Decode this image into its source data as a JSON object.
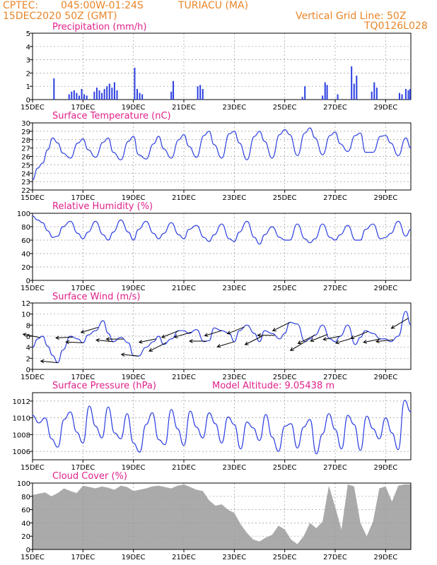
{
  "header": {
    "source": "CPTEC:",
    "location_coords": "045:00W-01:24S",
    "location_name": "TURIACU (MA)",
    "run_date": "15DEC2020 50Z (GMT)",
    "vertical_grid_line": "Vertical Grid Line: 50Z",
    "code": "TQ0126L028"
  },
  "colors": {
    "header": "#e8862a",
    "titles": "#e0208a",
    "series": "#2c3fe0",
    "wind_arrow": "#000000",
    "cloud": "#aaaaaa"
  },
  "x_labels": [
    "15DEC",
    "17DEC",
    "19DEC",
    "21DEC",
    "23DEC",
    "25DEC",
    "27DEC",
    "29DEC"
  ],
  "chart_data": [
    {
      "type": "bar",
      "title": "Precipitation (mm/h)",
      "ylim": [
        0,
        5
      ],
      "yticks": [
        0,
        1,
        2,
        3,
        4,
        5
      ],
      "grid": true,
      "events": [
        {
          "day": 0.85,
          "v": 1.6
        },
        {
          "day": 1.45,
          "v": 0.4
        },
        {
          "day": 1.55,
          "v": 0.6
        },
        {
          "day": 1.65,
          "v": 0.7
        },
        {
          "day": 1.75,
          "v": 0.5
        },
        {
          "day": 1.85,
          "v": 0.3
        },
        {
          "day": 1.95,
          "v": 0.8
        },
        {
          "day": 2.05,
          "v": 0.4
        },
        {
          "day": 2.15,
          "v": 0.3
        },
        {
          "day": 2.45,
          "v": 0.6
        },
        {
          "day": 2.55,
          "v": 0.9
        },
        {
          "day": 2.65,
          "v": 0.7
        },
        {
          "day": 2.75,
          "v": 0.5
        },
        {
          "day": 2.85,
          "v": 0.8
        },
        {
          "day": 2.95,
          "v": 1.0
        },
        {
          "day": 3.05,
          "v": 1.2
        },
        {
          "day": 3.15,
          "v": 0.9
        },
        {
          "day": 3.25,
          "v": 1.3
        },
        {
          "day": 3.35,
          "v": 0.7
        },
        {
          "day": 4.05,
          "v": 2.4
        },
        {
          "day": 4.15,
          "v": 0.8
        },
        {
          "day": 4.25,
          "v": 0.5
        },
        {
          "day": 4.35,
          "v": 0.4
        },
        {
          "day": 5.5,
          "v": 0.6
        },
        {
          "day": 5.58,
          "v": 1.4
        },
        {
          "day": 6.55,
          "v": 1.0
        },
        {
          "day": 6.65,
          "v": 1.1
        },
        {
          "day": 6.75,
          "v": 0.8
        },
        {
          "day": 10.7,
          "v": 0.2
        },
        {
          "day": 10.8,
          "v": 1.0
        },
        {
          "day": 11.5,
          "v": 0.3
        },
        {
          "day": 11.6,
          "v": 1.3
        },
        {
          "day": 11.68,
          "v": 1.1
        },
        {
          "day": 12.1,
          "v": 0.4
        },
        {
          "day": 12.65,
          "v": 2.5
        },
        {
          "day": 12.75,
          "v": 1.2
        },
        {
          "day": 12.85,
          "v": 1.8
        },
        {
          "day": 13.45,
          "v": 0.6
        },
        {
          "day": 13.55,
          "v": 1.3
        },
        {
          "day": 13.65,
          "v": 0.9
        },
        {
          "day": 14.55,
          "v": 0.5
        },
        {
          "day": 14.65,
          "v": 0.4
        },
        {
          "day": 14.8,
          "v": 0.8
        },
        {
          "day": 14.9,
          "v": 0.7
        },
        {
          "day": 14.97,
          "v": 0.8
        }
      ]
    },
    {
      "type": "line",
      "title": "Surface Temperature (nC)",
      "ylim": [
        22,
        30
      ],
      "yticks": [
        22,
        23,
        24,
        25,
        26,
        27,
        28,
        29,
        30
      ],
      "grid": true,
      "x": [
        0,
        0.2,
        0.4,
        0.6,
        0.8,
        1.0,
        1.2,
        1.5,
        1.8,
        2.0,
        2.2,
        2.5,
        2.8,
        3.0,
        3.2,
        3.5,
        3.8,
        4.0,
        4.2,
        4.5,
        4.8,
        5.0,
        5.2,
        5.5,
        5.8,
        6.0,
        6.2,
        6.5,
        6.8,
        7.0,
        7.2,
        7.5,
        7.8,
        8.0,
        8.2,
        8.5,
        8.8,
        9.0,
        9.2,
        9.5,
        9.8,
        10.0,
        10.2,
        10.5,
        10.8,
        11.0,
        11.2,
        11.5,
        11.8,
        12.0,
        12.2,
        12.5,
        12.8,
        13.0,
        13.2,
        13.5,
        13.8,
        14.0,
        14.2,
        14.5,
        14.8,
        15.0
      ],
      "series": [
        {
          "values": [
            23.2,
            24.6,
            25.2,
            26.8,
            28.2,
            27.6,
            26.4,
            25.8,
            27.6,
            28.1,
            26.8,
            25.9,
            27.7,
            28.2,
            26.5,
            25.6,
            27.8,
            28.4,
            26.2,
            25.7,
            27.5,
            28.4,
            26.9,
            25.8,
            28.0,
            28.6,
            27.2,
            25.9,
            28.5,
            29.0,
            27.4,
            25.8,
            28.7,
            29.0,
            27.6,
            25.6,
            28.4,
            29.0,
            27.8,
            25.8,
            28.6,
            29.2,
            28.6,
            26.1,
            28.8,
            29.4,
            28.2,
            26.2,
            28.5,
            28.9,
            27.5,
            26.6,
            28.5,
            28.8,
            26.5,
            26.5,
            28.4,
            28.5,
            27.6,
            26.1,
            28.2,
            27.0
          ]
        }
      ]
    },
    {
      "type": "line",
      "title": "Relative Humidity (%)",
      "ylim": [
        0,
        100
      ],
      "yticks": [
        0,
        20,
        40,
        60,
        80,
        100
      ],
      "grid": true,
      "x": [
        0,
        0.2,
        0.4,
        0.6,
        0.8,
        1.0,
        1.2,
        1.5,
        1.8,
        2.0,
        2.2,
        2.5,
        2.8,
        3.0,
        3.2,
        3.5,
        3.8,
        4.0,
        4.2,
        4.5,
        4.8,
        5.0,
        5.2,
        5.5,
        5.8,
        6.0,
        6.2,
        6.5,
        6.8,
        7.0,
        7.2,
        7.5,
        7.8,
        8.0,
        8.2,
        8.5,
        8.8,
        9.0,
        9.2,
        9.5,
        9.8,
        10.0,
        10.2,
        10.5,
        10.8,
        11.0,
        11.2,
        11.5,
        11.8,
        12.0,
        12.2,
        12.5,
        12.8,
        13.0,
        13.2,
        13.5,
        13.8,
        14.0,
        14.2,
        14.5,
        14.8,
        15.0
      ],
      "series": [
        {
          "values": [
            96,
            90,
            86,
            74,
            64,
            66,
            80,
            88,
            70,
            62,
            72,
            88,
            68,
            60,
            72,
            90,
            72,
            60,
            76,
            88,
            70,
            62,
            70,
            86,
            68,
            62,
            76,
            82,
            64,
            58,
            68,
            84,
            62,
            58,
            72,
            88,
            64,
            54,
            68,
            80,
            64,
            60,
            60,
            84,
            62,
            56,
            62,
            84,
            64,
            60,
            68,
            82,
            60,
            60,
            76,
            84,
            62,
            64,
            70,
            88,
            66,
            76
          ]
        }
      ]
    },
    {
      "type": "line",
      "title": "Surface Wind (m/s)",
      "ylim": [
        0,
        12
      ],
      "yticks": [
        0,
        2,
        4,
        6,
        8,
        10,
        12
      ],
      "grid": true,
      "x": [
        0,
        0.2,
        0.4,
        0.6,
        0.8,
        1.0,
        1.2,
        1.5,
        1.8,
        2.0,
        2.2,
        2.5,
        2.8,
        3.0,
        3.2,
        3.5,
        3.8,
        4.0,
        4.2,
        4.5,
        4.8,
        5.0,
        5.2,
        5.5,
        5.8,
        6.0,
        6.2,
        6.5,
        6.8,
        7.0,
        7.2,
        7.5,
        7.8,
        8.0,
        8.2,
        8.5,
        8.8,
        9.0,
        9.2,
        9.5,
        9.8,
        10.0,
        10.2,
        10.5,
        10.8,
        11.0,
        11.2,
        11.5,
        11.8,
        12.0,
        12.2,
        12.5,
        12.8,
        13.0,
        13.2,
        13.5,
        13.8,
        14.0,
        14.2,
        14.5,
        14.8,
        15.0
      ],
      "series": [
        {
          "values": [
            4.0,
            5.5,
            6.0,
            4.2,
            2.5,
            1.2,
            3.5,
            6.0,
            5.5,
            4.8,
            6.2,
            7.0,
            8.8,
            6.5,
            5.0,
            5.8,
            4.8,
            2.5,
            2.4,
            4.0,
            5.0,
            6.0,
            4.5,
            5.5,
            7.0,
            7.0,
            6.5,
            7.2,
            5.0,
            5.2,
            7.5,
            7.0,
            6.5,
            5.0,
            7.0,
            8.0,
            6.5,
            5.0,
            7.0,
            6.5,
            5.5,
            6.5,
            8.5,
            8.2,
            5.0,
            5.5,
            6.2,
            8.0,
            5.5,
            5.0,
            6.0,
            8.0,
            4.5,
            5.8,
            7.0,
            6.5,
            5.5,
            5.5,
            5.0,
            6.0,
            10.5,
            8.0
          ]
        }
      ],
      "arrows": [
        {
          "day": 0.3,
          "u": -1.0,
          "v": 0.2
        },
        {
          "day": 1.0,
          "u": -1.0,
          "v": 0.1
        },
        {
          "day": 1.6,
          "u": -1.0,
          "v": -0.05
        },
        {
          "day": 2.0,
          "u": -1.0,
          "v": 0.05
        },
        {
          "day": 2.6,
          "u": -1.0,
          "v": -0.3
        },
        {
          "day": 3.2,
          "u": -1.0,
          "v": 0.1
        },
        {
          "day": 3.6,
          "u": -1.0,
          "v": 0.0
        },
        {
          "day": 4.2,
          "u": -1.0,
          "v": 0.1
        },
        {
          "day": 4.9,
          "u": -1.0,
          "v": -0.2
        },
        {
          "day": 5.3,
          "u": -1.0,
          "v": -0.5
        },
        {
          "day": 5.8,
          "u": -1.0,
          "v": -0.4
        },
        {
          "day": 6.3,
          "u": -1.0,
          "v": -0.3
        },
        {
          "day": 6.9,
          "u": -1.0,
          "v": 0.0
        },
        {
          "day": 7.5,
          "u": -1.0,
          "v": -0.3
        },
        {
          "day": 8.0,
          "u": -1.0,
          "v": -0.3
        },
        {
          "day": 8.4,
          "u": -1.0,
          "v": -0.4
        },
        {
          "day": 9.1,
          "u": -1.0,
          "v": -0.5
        },
        {
          "day": 9.6,
          "u": -1.0,
          "v": 0.0
        },
        {
          "day": 10.2,
          "u": -1.0,
          "v": -0.5
        },
        {
          "day": 10.9,
          "u": -1.0,
          "v": -0.6
        },
        {
          "day": 11.2,
          "u": -1.0,
          "v": -0.5
        },
        {
          "day": 11.7,
          "u": -1.0,
          "v": -0.4
        },
        {
          "day": 12.2,
          "u": -1.0,
          "v": -0.2
        },
        {
          "day": 12.7,
          "u": -1.0,
          "v": -0.3
        },
        {
          "day": 13.3,
          "u": -1.0,
          "v": -0.4
        },
        {
          "day": 13.8,
          "u": -1.0,
          "v": -0.2
        },
        {
          "day": 14.3,
          "u": -1.0,
          "v": -0.1
        },
        {
          "day": 14.9,
          "u": -1.0,
          "v": -0.6
        }
      ]
    },
    {
      "type": "line",
      "title": "Surface Pressure (hPa)",
      "subtitle": "Model Altitude: 9.05438 m",
      "ylim": [
        1005,
        1013
      ],
      "yticks": [
        1006,
        1008,
        1010,
        1012
      ],
      "grid": true,
      "x": [
        0,
        0.25,
        0.5,
        0.75,
        1.0,
        1.25,
        1.5,
        1.75,
        2.0,
        2.25,
        2.5,
        2.75,
        3.0,
        3.25,
        3.5,
        3.75,
        4.0,
        4.25,
        4.5,
        4.75,
        5.0,
        5.25,
        5.5,
        5.75,
        6.0,
        6.25,
        6.5,
        6.75,
        7.0,
        7.25,
        7.5,
        7.75,
        8.0,
        8.25,
        8.5,
        8.75,
        9.0,
        9.25,
        9.5,
        9.75,
        10.0,
        10.25,
        10.5,
        10.75,
        11.0,
        11.25,
        11.5,
        11.75,
        12.0,
        12.25,
        12.5,
        12.75,
        13.0,
        13.25,
        13.5,
        13.75,
        14.0,
        14.25,
        14.5,
        14.75,
        15.0
      ],
      "series": [
        {
          "values": [
            1010.3,
            1009.4,
            1010.0,
            1007.5,
            1006.5,
            1009.8,
            1010.7,
            1008.3,
            1007.0,
            1011.4,
            1009.0,
            1007.6,
            1011.3,
            1008.2,
            1007.5,
            1010.5,
            1007.0,
            1005.9,
            1009.2,
            1010.6,
            1007.4,
            1006.8,
            1011.0,
            1008.7,
            1006.7,
            1010.8,
            1008.9,
            1007.6,
            1010.6,
            1009.3,
            1007.0,
            1010.1,
            1009.2,
            1006.3,
            1009.5,
            1008.8,
            1007.3,
            1010.4,
            1007.7,
            1006.0,
            1009.0,
            1009.3,
            1006.4,
            1008.9,
            1009.8,
            1005.7,
            1008.1,
            1010.5,
            1008.6,
            1006.3,
            1010.3,
            1009.2,
            1006.1,
            1010.2,
            1008.7,
            1007.5,
            1010.0,
            1008.2,
            1006.2,
            1012.1,
            1010.7
          ]
        }
      ]
    },
    {
      "type": "area",
      "title": "Cloud Cover (%)",
      "ylim": [
        0,
        100
      ],
      "yticks": [
        0,
        20,
        40,
        60,
        80,
        100
      ],
      "grid": true,
      "x": [
        0,
        0.25,
        0.5,
        0.75,
        1.0,
        1.25,
        1.5,
        1.75,
        2.0,
        2.25,
        2.5,
        2.75,
        3.0,
        3.25,
        3.5,
        3.75,
        4.0,
        4.25,
        4.5,
        4.75,
        5.0,
        5.25,
        5.5,
        5.75,
        6.0,
        6.25,
        6.5,
        6.75,
        7.0,
        7.25,
        7.5,
        7.75,
        8.0,
        8.25,
        8.5,
        8.75,
        9.0,
        9.25,
        9.5,
        9.75,
        10.0,
        10.25,
        10.5,
        10.75,
        11.0,
        11.25,
        11.5,
        11.75,
        12.0,
        12.25,
        12.5,
        12.75,
        13.0,
        13.25,
        13.5,
        13.75,
        14.0,
        14.25,
        14.5,
        14.75,
        15.0
      ],
      "series": [
        {
          "values": [
            82,
            84,
            86,
            80,
            85,
            92,
            88,
            85,
            96,
            94,
            92,
            95,
            93,
            90,
            96,
            94,
            88,
            90,
            92,
            95,
            96,
            94,
            92,
            96,
            98,
            94,
            90,
            88,
            74,
            66,
            68,
            60,
            55,
            38,
            25,
            15,
            12,
            18,
            22,
            36,
            30,
            15,
            8,
            20,
            40,
            32,
            42,
            96,
            64,
            30,
            98,
            95,
            40,
            20,
            42,
            92,
            95,
            72,
            96,
            98,
            98
          ]
        }
      ]
    }
  ]
}
